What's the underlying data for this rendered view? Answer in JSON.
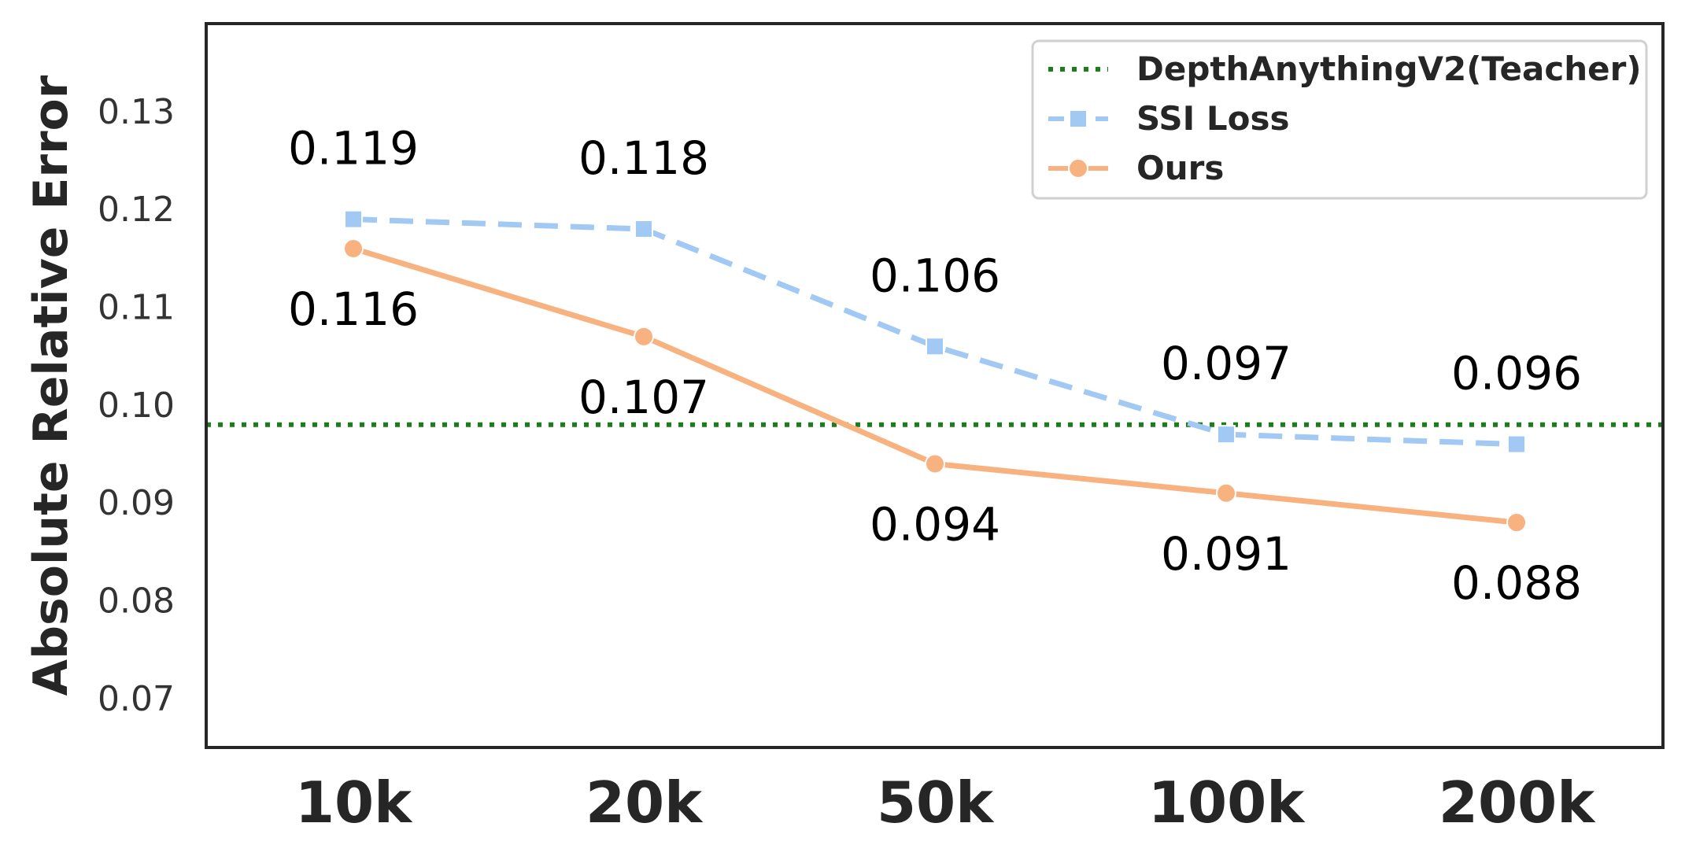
{
  "chart_data": {
    "type": "line",
    "title": "",
    "xlabel": "",
    "ylabel": "Absolute Relative Error",
    "categories": [
      "10k",
      "20k",
      "50k",
      "100k",
      "200k"
    ],
    "ylim": [
      0.065,
      0.139
    ],
    "yticks": [
      0.07,
      0.08,
      0.09,
      0.1,
      0.11,
      0.12,
      0.13
    ],
    "ytick_labels": [
      "0.07",
      "0.08",
      "0.09",
      "0.10",
      "0.11",
      "0.12",
      "0.13"
    ],
    "grid": false,
    "legend_position": "top-right",
    "reference_lines": [
      {
        "name": "DepthAnythingV2(Teacher)",
        "value": 0.098,
        "color": "#1a7f1a",
        "style": "dotted"
      }
    ],
    "series": [
      {
        "name": "SSI Loss",
        "values": [
          0.119,
          0.118,
          0.106,
          0.097,
          0.096
        ],
        "labels": [
          "0.119",
          "0.118",
          "0.106",
          "0.097",
          "0.096"
        ],
        "color": "#a1c9f4",
        "style": "dashed",
        "marker": "square",
        "label_position": "above"
      },
      {
        "name": "Ours",
        "values": [
          0.116,
          0.107,
          0.094,
          0.091,
          0.088
        ],
        "labels": [
          "0.116",
          "0.107",
          "0.094",
          "0.091",
          "0.088"
        ],
        "color": "#f8b27f",
        "style": "solid",
        "marker": "circle",
        "label_position": "below"
      }
    ]
  }
}
